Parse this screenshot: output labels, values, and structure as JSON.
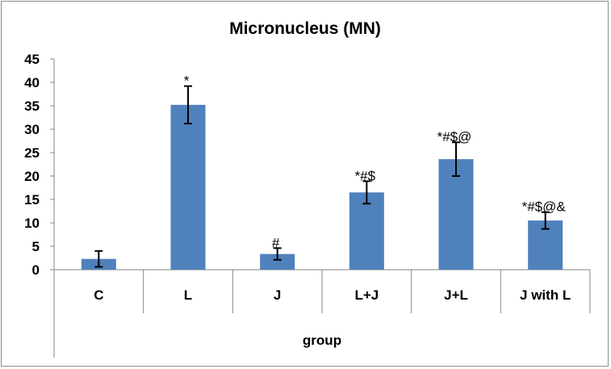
{
  "chart_data": {
    "type": "bar",
    "title": "Micronucleus (MN)",
    "xlabel": "group",
    "ylabel": "",
    "ylim": [
      0,
      45
    ],
    "yticks": [
      "0",
      "5",
      "10",
      "15",
      "20",
      "25",
      "30",
      "35",
      "40",
      "45"
    ],
    "categories": [
      "C",
      "L",
      "J",
      "L+J",
      "J+L",
      "J with L"
    ],
    "values": [
      2.3,
      35.2,
      3.35,
      16.5,
      23.6,
      10.5
    ],
    "errors": [
      1.7,
      4.0,
      1.25,
      2.4,
      3.6,
      1.8
    ],
    "annotations": [
      "",
      "*",
      "#",
      "*#$",
      "*#$@",
      "*#$@&"
    ],
    "bar_color": "#4f81bd",
    "grid": false
  }
}
